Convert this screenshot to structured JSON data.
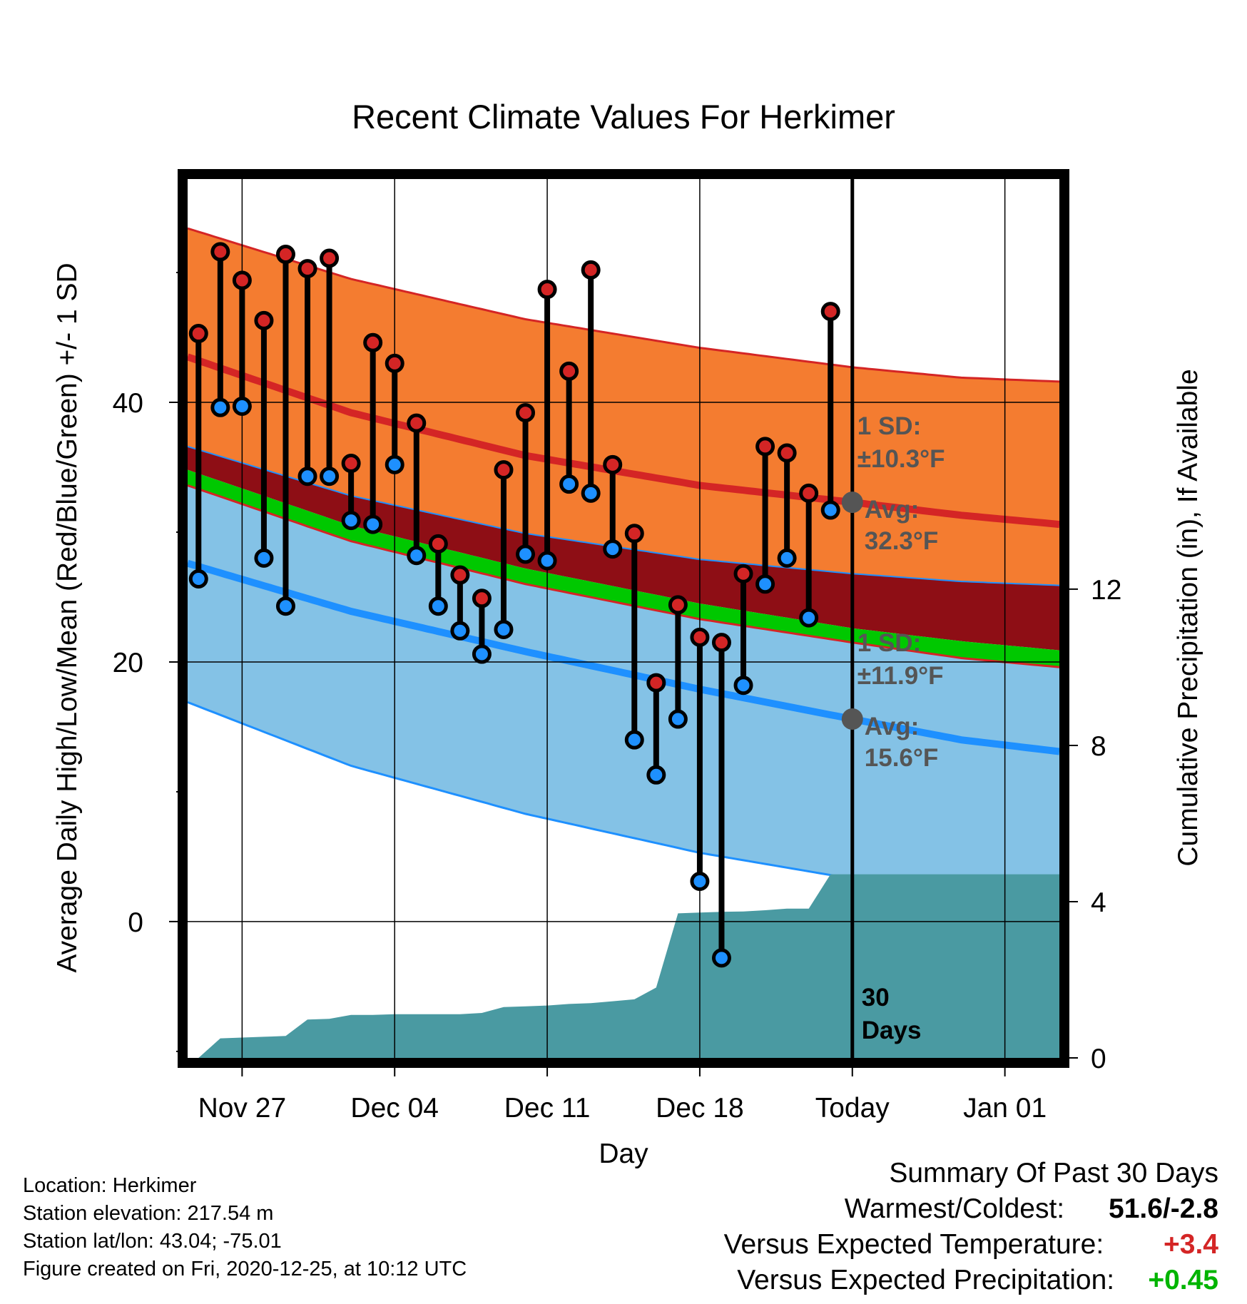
{
  "chart_data": {
    "type": "line",
    "title": "Recent Climate Values For Herkimer",
    "xlabel": "Day",
    "ylabel": "Average Daily High/Low/Mean (Red/Blue/Green) +/- 1 SD",
    "ylabel_right": "Cumulative Precipitation (in), If Available",
    "x_ticks": [
      "Nov 27",
      "Dec 04",
      "Dec 11",
      "Dec 18",
      "Today",
      "Jan 01"
    ],
    "x_tick_days": [
      3,
      10,
      17,
      24,
      31,
      38
    ],
    "x_range_days": [
      0.5,
      40.5
    ],
    "ylim": [
      -10.5,
      57.2
    ],
    "y_ticks": [
      0,
      20,
      40
    ],
    "y_minor_ticks": [
      -10,
      10,
      30,
      50
    ],
    "y2lim": [
      0,
      22.5
    ],
    "y2_ticks": [
      0,
      4,
      8,
      12
    ],
    "grid": true,
    "today_day": 31,
    "today_label_lines": [
      "30",
      "Days"
    ],
    "normals": {
      "days": [
        0.5,
        8,
        16,
        24,
        31,
        36,
        40.5
      ],
      "high_upper": [
        53.4,
        49.5,
        46.4,
        44.2,
        42.7,
        41.9,
        41.6
      ],
      "high_mean": [
        43.5,
        39.2,
        35.9,
        33.6,
        32.3,
        31.3,
        30.6
      ],
      "high_lower": [
        36.6,
        32.8,
        29.9,
        27.9,
        26.8,
        26.2,
        25.9
      ],
      "mean_upper": [
        34.8,
        30.5,
        27.2,
        24.5,
        22.6,
        21.6,
        20.9
      ],
      "mean_lower": [
        33.6,
        29.3,
        26.0,
        23.3,
        21.5,
        20.3,
        19.6
      ],
      "low_mean": [
        27.6,
        23.9,
        20.8,
        17.9,
        15.6,
        14.0,
        13.1
      ],
      "low_lower": [
        16.9,
        12.0,
        8.3,
        5.3,
        3.3,
        1.7,
        0.1
      ]
    },
    "series": [
      {
        "name": "High",
        "color": "#d42525",
        "days": [
          1,
          2,
          3,
          4,
          5,
          6,
          7,
          8,
          9,
          10,
          11,
          12,
          13,
          14,
          15,
          16,
          17,
          18,
          19,
          20,
          21,
          22,
          23,
          24,
          25,
          26,
          27,
          28,
          29,
          30
        ],
        "values": [
          45.3,
          51.6,
          49.4,
          46.3,
          51.4,
          50.3,
          51.1,
          35.3,
          44.6,
          43.0,
          38.4,
          29.1,
          26.7,
          24.9,
          34.8,
          39.2,
          48.7,
          42.4,
          50.2,
          35.2,
          29.9,
          18.4,
          24.4,
          21.9,
          21.5,
          26.8,
          36.6,
          36.1,
          33.0,
          47.0
        ]
      },
      {
        "name": "Low",
        "color": "#1e90ff",
        "days": [
          1,
          2,
          3,
          4,
          5,
          6,
          7,
          8,
          9,
          10,
          11,
          12,
          13,
          14,
          15,
          16,
          17,
          18,
          19,
          20,
          21,
          22,
          23,
          24,
          25,
          26,
          27,
          28,
          29,
          30
        ],
        "values": [
          26.4,
          39.6,
          39.7,
          28.0,
          24.3,
          34.3,
          34.3,
          30.9,
          30.6,
          35.2,
          28.2,
          24.3,
          22.4,
          20.6,
          22.5,
          28.3,
          27.8,
          33.7,
          33.0,
          28.7,
          14.0,
          11.3,
          15.6,
          3.1,
          -2.8,
          18.2,
          26.0,
          28.0,
          23.4,
          31.7
        ]
      }
    ],
    "precipitation": {
      "unit": "in",
      "days": [
        0.5,
        1,
        2,
        3,
        4,
        5,
        6,
        7,
        8,
        9,
        10,
        11,
        12,
        13,
        14,
        15,
        16,
        17,
        18,
        19,
        20,
        21,
        22,
        23,
        24,
        25,
        26,
        27,
        28,
        29,
        30,
        31,
        40.5
      ],
      "values": [
        0,
        0,
        0.5,
        0.52,
        0.54,
        0.56,
        0.98,
        1.0,
        1.1,
        1.1,
        1.12,
        1.12,
        1.12,
        1.12,
        1.15,
        1.3,
        1.32,
        1.34,
        1.38,
        1.4,
        1.45,
        1.5,
        1.8,
        3.7,
        3.72,
        3.74,
        3.75,
        3.78,
        3.82,
        3.82,
        4.7,
        4.7,
        4.7
      ]
    },
    "annotations": [
      {
        "name": "high",
        "sd_label": "1 SD:",
        "sd_value": "±10.3°F",
        "avg_label": "Avg:",
        "avg_value": "32.3°F",
        "avg": 32.3
      },
      {
        "name": "low",
        "sd_label": "1 SD:",
        "sd_value": "±11.9°F",
        "avg_label": "Avg:",
        "avg_value": "15.6°F",
        "avg": 15.6
      }
    ],
    "colors": {
      "high_band": "#f47c30",
      "high_line": "#d42525",
      "mid_band": "#8e0e15",
      "mean_band": "#00c800",
      "low_band": "#84c2e6",
      "low_line": "#1e90ff",
      "precip": "#4a9aa2",
      "annotation_text": "#555555"
    }
  },
  "footer": {
    "location": "Location: Herkimer",
    "elevation": "Station elevation: 217.54 m",
    "latlon": "Station lat/lon: 43.04; -75.01",
    "created": "Figure created on Fri, 2020-12-25, at 10:12 UTC"
  },
  "summary": {
    "title": "Summary Of Past 30 Days",
    "warmest_label": "Warmest/Coldest:",
    "warmest_value": "51.6/-2.8",
    "temp_label": "Versus Expected Temperature:",
    "temp_value": "+3.4",
    "temp_color": "#d42525",
    "precip_label": "Versus Expected Precipitation:",
    "precip_value": "+0.45",
    "precip_color": "#00b400"
  }
}
